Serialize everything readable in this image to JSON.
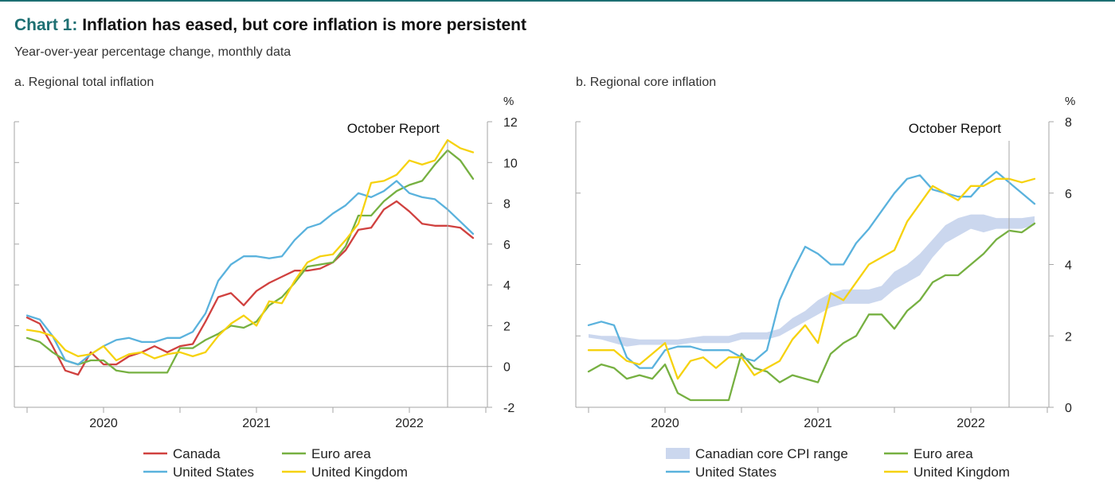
{
  "header": {
    "chart_number": "Chart 1:",
    "title": "Inflation has eased, but core inflation is more persistent",
    "subtitle": "Year-over-year percentage change, monthly data"
  },
  "colors": {
    "canada": "#d0413f",
    "euro_area": "#76b041",
    "united_states": "#5ab2dd",
    "united_kingdom": "#f6d20e",
    "core_range": "#cbd7ee",
    "accent": "#1d6f72"
  },
  "chart_data": [
    {
      "id": "a",
      "type": "line",
      "label": "a. Regional total inflation",
      "unit": "%",
      "annotation": "October Report",
      "ylim": [
        -2,
        12
      ],
      "yticks": [
        -2,
        0,
        2,
        4,
        6,
        8,
        10,
        12
      ],
      "xlim": [
        2019.5,
        2022.5
      ],
      "xticks": [
        2020,
        2021,
        2022
      ],
      "x_tick_labels": [
        "2020",
        "2021",
        "2022"
      ],
      "period_x": [
        2019.5,
        2020.0,
        2020.5,
        2021.0,
        2021.5,
        2022.0,
        2022.5
      ],
      "x": [
        2019.5,
        2019.5833,
        2019.6667,
        2019.75,
        2019.8333,
        2019.9167,
        2020.0,
        2020.0833,
        2020.1667,
        2020.25,
        2020.3333,
        2020.4167,
        2020.5,
        2020.5833,
        2020.6667,
        2020.75,
        2020.8333,
        2020.9167,
        2021.0,
        2021.0833,
        2021.1667,
        2021.25,
        2021.3333,
        2021.4167,
        2021.5,
        2021.5833,
        2021.6667,
        2021.75,
        2021.8333,
        2021.9167,
        2022.0,
        2022.0833,
        2022.1667,
        2022.25,
        2022.3333,
        2022.4167
      ],
      "series": [
        {
          "name": "Canada",
          "color_key": "canada",
          "values": [
            2.4,
            2.1,
            1.0,
            -0.2,
            -0.4,
            0.7,
            0.1,
            0.1,
            0.5,
            0.7,
            1.0,
            0.7,
            1.0,
            1.1,
            2.2,
            3.4,
            3.6,
            3.0,
            3.7,
            4.1,
            4.4,
            4.7,
            4.7,
            4.8,
            5.1,
            5.7,
            6.7,
            6.8,
            7.7,
            8.1,
            7.6,
            7.0,
            6.9,
            6.9,
            6.8,
            6.3
          ]
        },
        {
          "name": "Euro area",
          "color_key": "euro_area",
          "values": [
            1.4,
            1.2,
            0.7,
            0.3,
            0.1,
            0.3,
            0.3,
            -0.2,
            -0.3,
            -0.3,
            -0.3,
            -0.3,
            0.9,
            0.9,
            1.3,
            1.6,
            2.0,
            1.9,
            2.2,
            3.0,
            3.4,
            4.1,
            4.9,
            5.0,
            5.1,
            5.9,
            7.4,
            7.4,
            8.1,
            8.6,
            8.9,
            9.1,
            9.9,
            10.6,
            10.1,
            9.2
          ]
        },
        {
          "name": "United States",
          "color_key": "united_states",
          "values": [
            2.5,
            2.3,
            1.5,
            0.3,
            0.1,
            0.6,
            1.0,
            1.3,
            1.4,
            1.2,
            1.2,
            1.4,
            1.4,
            1.7,
            2.6,
            4.2,
            5.0,
            5.4,
            5.4,
            5.3,
            5.4,
            6.2,
            6.8,
            7.0,
            7.5,
            7.9,
            8.5,
            8.3,
            8.6,
            9.1,
            8.5,
            8.3,
            8.2,
            7.7,
            7.1,
            6.5
          ]
        },
        {
          "name": "United Kingdom",
          "color_key": "united_kingdom",
          "values": [
            1.8,
            1.7,
            1.5,
            0.8,
            0.5,
            0.6,
            1.0,
            0.3,
            0.6,
            0.7,
            0.4,
            0.6,
            0.7,
            0.5,
            0.7,
            1.5,
            2.1,
            2.5,
            2.0,
            3.2,
            3.1,
            4.2,
            5.1,
            5.4,
            5.5,
            6.2,
            7.0,
            9.0,
            9.1,
            9.4,
            10.1,
            9.9,
            10.1,
            11.1,
            10.7,
            10.5
          ]
        }
      ]
    },
    {
      "id": "b",
      "type": "line",
      "label": "b. Regional core inflation",
      "unit": "%",
      "annotation": "October Report",
      "ylim": [
        0,
        8
      ],
      "yticks": [
        0,
        2,
        4,
        6,
        8
      ],
      "xlim": [
        2019.5,
        2022.5
      ],
      "xticks": [
        2020,
        2021,
        2022
      ],
      "x_tick_labels": [
        "2020",
        "2021",
        "2022"
      ],
      "period_x": [
        2019.5,
        2020.0,
        2020.5,
        2021.0,
        2021.5,
        2022.0,
        2022.5
      ],
      "x": [
        2019.5,
        2019.5833,
        2019.6667,
        2019.75,
        2019.8333,
        2019.9167,
        2020.0,
        2020.0833,
        2020.1667,
        2020.25,
        2020.3333,
        2020.4167,
        2020.5,
        2020.5833,
        2020.6667,
        2020.75,
        2020.8333,
        2020.9167,
        2021.0,
        2021.0833,
        2021.1667,
        2021.25,
        2021.3333,
        2021.4167,
        2021.5,
        2021.5833,
        2021.6667,
        2021.75,
        2021.8333,
        2021.9167,
        2022.0,
        2022.0833,
        2022.1667,
        2022.25,
        2022.3333,
        2022.4167
      ],
      "range": {
        "name": "Canadian core CPI range",
        "color_key": "core_range",
        "low": [
          1.95,
          1.9,
          1.8,
          1.7,
          1.75,
          1.75,
          1.75,
          1.75,
          1.8,
          1.8,
          1.8,
          1.8,
          1.9,
          1.9,
          1.9,
          2.0,
          2.2,
          2.4,
          2.6,
          2.8,
          2.9,
          2.9,
          2.9,
          3.0,
          3.3,
          3.5,
          3.7,
          4.2,
          4.6,
          4.8,
          5.0,
          4.9,
          5.0,
          5.0,
          5.0,
          5.1
        ],
        "high": [
          2.05,
          2.0,
          2.0,
          1.95,
          1.9,
          1.9,
          1.9,
          1.9,
          1.95,
          2.0,
          2.0,
          2.0,
          2.1,
          2.1,
          2.1,
          2.2,
          2.5,
          2.7,
          3.0,
          3.2,
          3.3,
          3.3,
          3.3,
          3.4,
          3.8,
          4.0,
          4.3,
          4.7,
          5.1,
          5.3,
          5.4,
          5.4,
          5.3,
          5.3,
          5.3,
          5.35
        ]
      },
      "series": [
        {
          "name": "Euro area",
          "color_key": "euro_area",
          "values": [
            1.0,
            1.2,
            1.1,
            0.8,
            0.9,
            0.8,
            1.2,
            0.4,
            0.2,
            0.2,
            0.2,
            0.2,
            1.5,
            1.1,
            1.0,
            0.7,
            0.9,
            0.8,
            0.7,
            1.5,
            1.8,
            2.0,
            2.6,
            2.6,
            2.2,
            2.7,
            3.0,
            3.5,
            3.7,
            3.7,
            4.0,
            4.3,
            4.7,
            4.95,
            4.9,
            5.15
          ]
        },
        {
          "name": "United States",
          "color_key": "united_states",
          "values": [
            2.3,
            2.4,
            2.3,
            1.4,
            1.1,
            1.1,
            1.6,
            1.7,
            1.7,
            1.6,
            1.6,
            1.6,
            1.4,
            1.3,
            1.6,
            3.0,
            3.8,
            4.5,
            4.3,
            4.0,
            4.0,
            4.6,
            5.0,
            5.5,
            6.0,
            6.4,
            6.5,
            6.1,
            6.0,
            5.9,
            5.9,
            6.3,
            6.6,
            6.3,
            6.0,
            5.7
          ]
        },
        {
          "name": "United Kingdom",
          "color_key": "united_kingdom",
          "values": [
            1.6,
            1.6,
            1.6,
            1.3,
            1.2,
            1.5,
            1.8,
            0.8,
            1.3,
            1.4,
            1.1,
            1.4,
            1.4,
            0.9,
            1.1,
            1.3,
            1.9,
            2.3,
            1.8,
            3.2,
            3.0,
            3.5,
            4.0,
            4.2,
            4.4,
            5.2,
            5.7,
            6.2,
            6.0,
            5.8,
            6.2,
            6.2,
            6.4,
            6.4,
            6.3,
            6.4
          ]
        }
      ]
    }
  ],
  "legend_a": {
    "canada": "Canada",
    "euro_area": "Euro area",
    "united_states": "United States",
    "united_kingdom": "United Kingdom"
  },
  "legend_b": {
    "core_range": "Canadian core CPI range",
    "euro_area": "Euro area",
    "united_states": "United States",
    "united_kingdom": "United Kingdom"
  }
}
